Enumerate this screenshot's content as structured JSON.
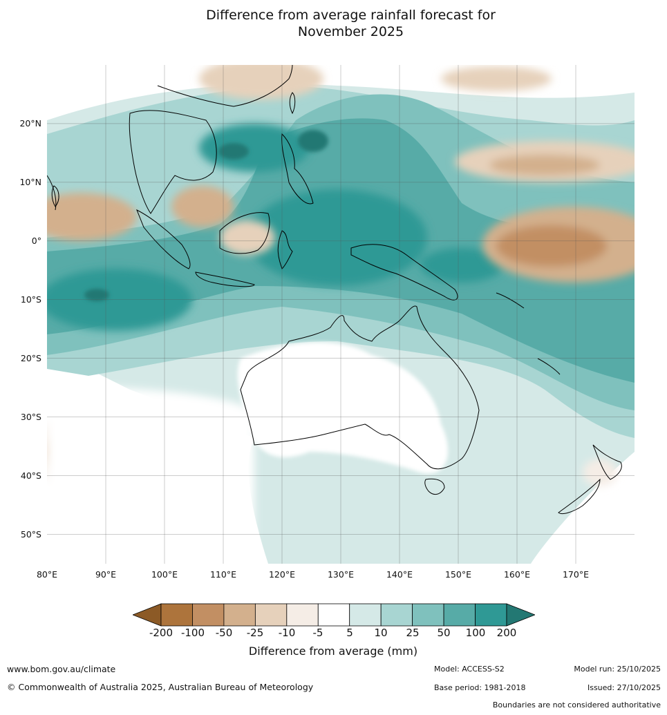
{
  "title": {
    "line1": "Difference from average rainfall forecast for",
    "line2": "November 2025"
  },
  "map": {
    "latitude_labels": [
      "20°N",
      "10°N",
      "0°",
      "10°S",
      "20°S",
      "30°S",
      "40°S",
      "50°S"
    ],
    "longitude_labels": [
      "80°E",
      "90°E",
      "100°E",
      "110°E",
      "120°E",
      "130°E",
      "140°E",
      "150°E",
      "160°E",
      "170°E"
    ],
    "lon_range": [
      80,
      180
    ],
    "lat_range": [
      -55,
      30
    ]
  },
  "legend": {
    "ticks": [
      "-200",
      "-100",
      "-50",
      "-25",
      "-10",
      "-5",
      "5",
      "10",
      "25",
      "50",
      "100",
      "200"
    ],
    "colors": [
      "#8c5a26",
      "#ad743c",
      "#c28f63",
      "#d3b08d",
      "#e6d1bb",
      "#f5ede6",
      "#ffffff",
      "#d5e9e7",
      "#a8d5d2",
      "#7fc1bd",
      "#57aba7",
      "#2f9995",
      "#237873"
    ],
    "label": "Difference from average (mm)"
  },
  "footer": {
    "website": "www.bom.gov.au/climate",
    "copyright": "© Commonwealth of Australia 2025, Australian Bureau of Meteorology",
    "model": "Model: ACCESS-S2",
    "base_period": "Base period: 1981-2018",
    "model_run": "Model run: 25/10/2025",
    "issued": "Issued: 27/10/2025",
    "boundaries_note": "Boundaries are not considered authoritative"
  }
}
